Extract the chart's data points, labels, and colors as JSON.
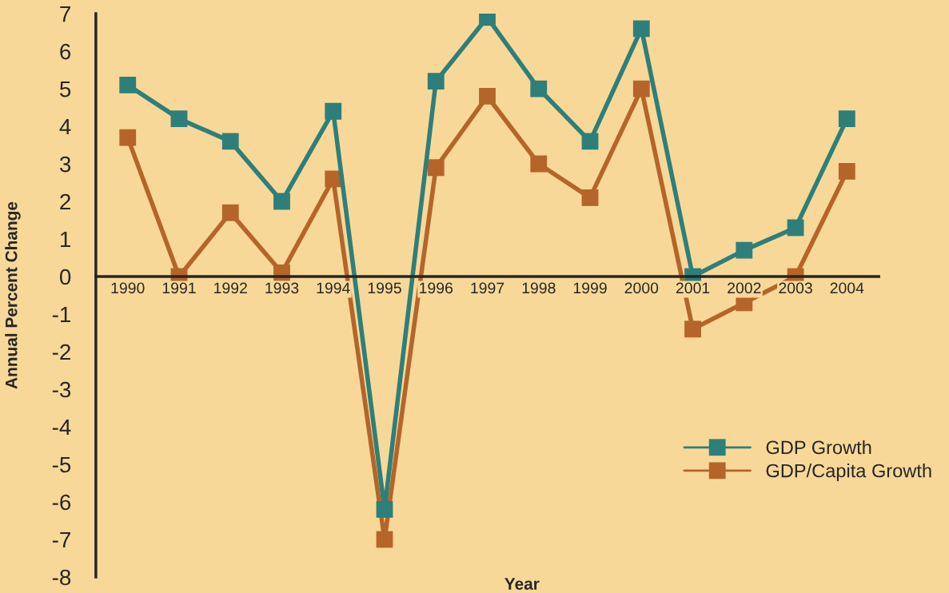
{
  "chart_data": {
    "type": "line",
    "xlabel": "Year",
    "ylabel": "Annual Percent Change",
    "categories": [
      "1990",
      "1991",
      "1992",
      "1993",
      "1994",
      "1995",
      "1996",
      "1997",
      "1998",
      "1999",
      "2000",
      "2001",
      "2002",
      "2003",
      "2004"
    ],
    "series": [
      {
        "name": "GDP Growth",
        "color": "#2e7f7a",
        "values": [
          5.1,
          4.2,
          3.6,
          2.0,
          4.4,
          -6.2,
          5.2,
          6.9,
          5.0,
          3.6,
          6.6,
          0,
          0.7,
          1.3,
          4.2
        ]
      },
      {
        "name": "GDP/Capita Growth",
        "color": "#b5652a",
        "values": [
          3.7,
          0,
          1.7,
          0.1,
          2.6,
          -7.0,
          2.9,
          4.8,
          3.0,
          2.1,
          5.0,
          -1.4,
          -0.7,
          0,
          2.8
        ]
      }
    ],
    "ylim": [
      -8,
      7
    ],
    "yticks": [
      -8,
      -7,
      -6,
      -5,
      -4,
      -3,
      -2,
      -1,
      0,
      1,
      2,
      3,
      4,
      5,
      6,
      7
    ],
    "grid": false,
    "legend": "bottom right",
    "marker": "square",
    "line_style": "solid"
  }
}
